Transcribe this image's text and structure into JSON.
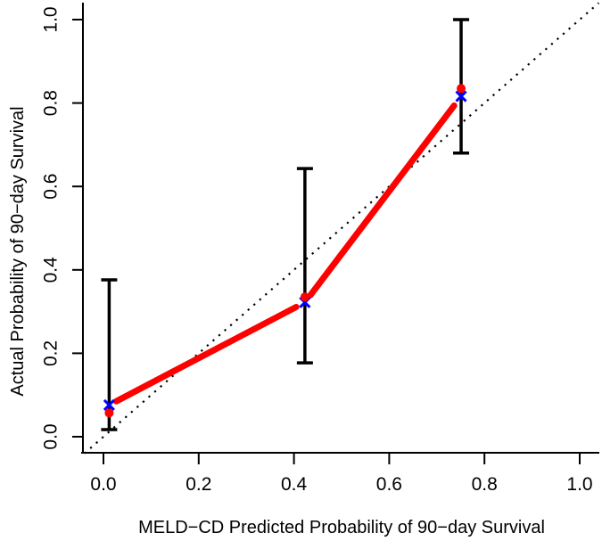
{
  "figure": {
    "background": "#FFFFFF",
    "palette": {
      "axis": "#000000",
      "ideal_line": "#000000",
      "calibration_line": "#FF0000",
      "logistic_markers": "#0000FF",
      "observed_markers": "#FF0000",
      "error_bars": "#000000"
    }
  },
  "chart_data": {
    "type": "line",
    "title": "",
    "xlabel": "MELD−CD Predicted Probability of 90−day Survival",
    "ylabel": "Actual Probability of 90−day Survival",
    "xlim": [
      -0.04,
      1.04
    ],
    "ylim": [
      -0.04,
      1.04
    ],
    "grid": false,
    "legend": null,
    "xticks": {
      "values": [
        0,
        0.2,
        0.4,
        0.6,
        0.8,
        1.0
      ],
      "labels": [
        "0.0",
        "0.2",
        "0.4",
        "0.6",
        "0.8",
        "1.0"
      ]
    },
    "yticks": {
      "values": [
        0,
        0.2,
        0.4,
        0.6,
        0.8,
        1.0
      ],
      "labels": [
        "0.0",
        "0.2",
        "0.4",
        "0.6",
        "0.8",
        "1.0"
      ]
    },
    "series": [
      {
        "name": "ideal-line",
        "type": "line",
        "style": "dotted",
        "color": "#000000",
        "x": [
          -0.04,
          1.04
        ],
        "y": [
          -0.04,
          1.04
        ]
      },
      {
        "name": "confidence-intervals",
        "type": "errorbar",
        "color": "#000000",
        "x": [
          0.012,
          0.423,
          0.751
        ],
        "low": [
          0.017,
          0.177,
          0.68
        ],
        "high": [
          0.376,
          0.643,
          1.0
        ]
      },
      {
        "name": "calibration-line",
        "type": "line",
        "style": "solid",
        "color": "#FF0000",
        "x": [
          0.012,
          0.423,
          0.751
        ],
        "y": [
          0.076,
          0.322,
          0.816
        ]
      },
      {
        "name": "logistic-calibration-points",
        "type": "scatter",
        "marker": "x",
        "color": "#0000FF",
        "x": [
          0.012,
          0.423,
          0.751
        ],
        "y": [
          0.076,
          0.322,
          0.816
        ]
      },
      {
        "name": "observed-proportion-points",
        "type": "scatter",
        "marker": "circle",
        "color": "#FF0000",
        "x": [
          0.012,
          0.423,
          0.751
        ],
        "y": [
          0.057,
          0.335,
          0.835
        ]
      }
    ]
  }
}
